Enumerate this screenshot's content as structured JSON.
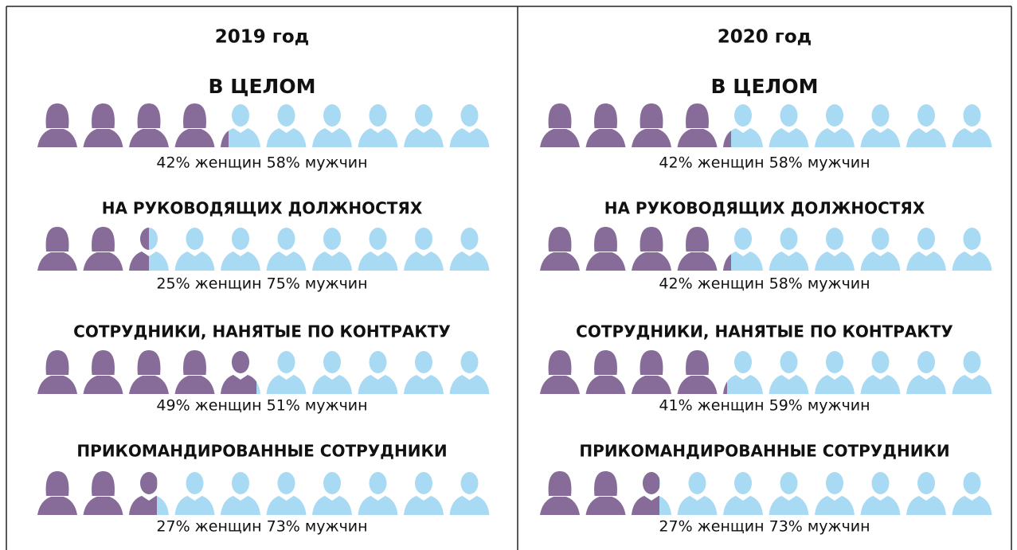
{
  "chart_data": [
    {
      "type": "pictograph",
      "title": "2019 год",
      "colors": [
        "#876b98",
        "#a9daf3"
      ],
      "rows": [
        {
          "label": "В ЦЕЛОМ",
          "values": [
            42,
            58
          ],
          "caption": "42% женщин 58% мужчин"
        },
        {
          "label": "НА РУКОВОДЯЩИХ ДОЛЖНОСТЯХ",
          "values": [
            25,
            75
          ],
          "caption": "25% женщин 75% мужчин"
        },
        {
          "label": "СОТРУДНИКИ, НАНЯТЫЕ ПО КОНТРАКТУ",
          "values": [
            49,
            51
          ],
          "caption": "49% женщин 51% мужчин"
        },
        {
          "label": "ПРИКОМАНДИРОВАННЫЕ СОТРУДНИКИ",
          "values": [
            27,
            73
          ],
          "caption": "27% женщин 73% мужчин"
        }
      ]
    },
    {
      "type": "pictograph",
      "title": "2020 год",
      "colors": [
        "#876b98",
        "#a9daf3"
      ],
      "rows": [
        {
          "label": "В ЦЕЛОМ",
          "values": [
            42,
            58
          ],
          "caption": "42% женщин 58% мужчин"
        },
        {
          "label": "НА РУКОВОДЯЩИХ ДОЛЖНОСТЯХ",
          "values": [
            42,
            58
          ],
          "caption": "42% женщин 58% мужчин"
        },
        {
          "label": "СОТРУДНИКИ, НАНЯТЫЕ ПО КОНТРАКТУ",
          "values": [
            41,
            59
          ],
          "caption": "41% женщин 59% мужчин"
        },
        {
          "label": "ПРИКОМАНДИРОВАННЫЕ СОТРУДНИКИ",
          "values": [
            27,
            73
          ],
          "caption": "27% женщин 73% мужчин"
        }
      ]
    }
  ]
}
